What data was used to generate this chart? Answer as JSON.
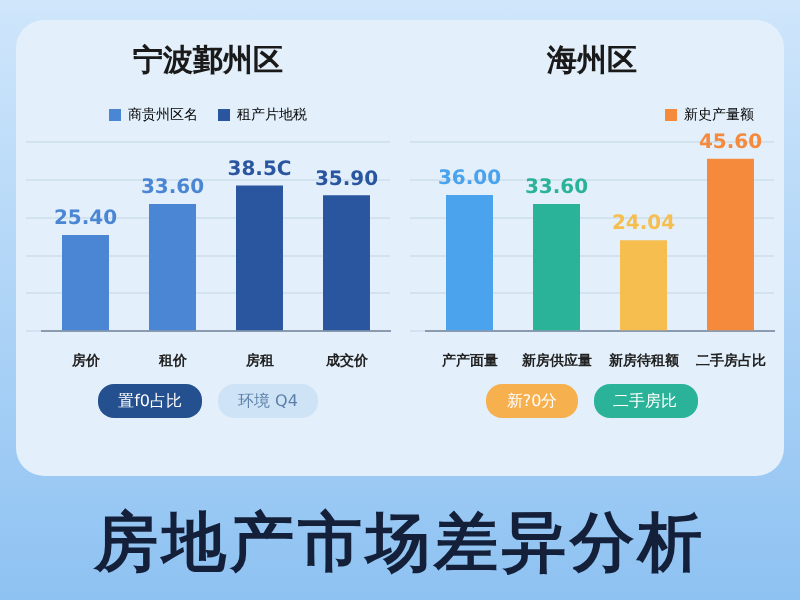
{
  "chart_data": [
    {
      "type": "bar",
      "title": "宁波鄞州区",
      "categories": [
        "房价",
        "租价",
        "房租",
        "成交价"
      ],
      "legend": "top",
      "grid": "y",
      "ylim": [
        0,
        50
      ],
      "tick_labels": "x",
      "yticks": [
        {
          "value": 0,
          "label": null
        },
        {
          "value": 10,
          "label": null
        },
        {
          "value": 20,
          "label": null
        },
        {
          "value": 30,
          "label": null
        },
        {
          "value": 40,
          "label": null
        },
        {
          "value": 50,
          "label": null
        }
      ],
      "data_labels": true,
      "series": [
        {
          "name": "商贵州区名",
          "color": "#4a86d4",
          "values": [
            25.4,
            33.6,
            null,
            null
          ],
          "value_labels": [
            "25.40",
            "33.60",
            null,
            null
          ]
        },
        {
          "name": "租产片地税",
          "color": "#2a56a0",
          "values": [
            null,
            null,
            38.5,
            35.9
          ],
          "value_labels": [
            null,
            null,
            "38.5C",
            "35.90"
          ]
        }
      ],
      "annotations": [
        "置f0占比",
        "环境 Q4"
      ]
    },
    {
      "type": "bar",
      "title": "海州区",
      "categories": [
        "产产面量",
        "新房供应量",
        "新房待租额",
        "二手房占比"
      ],
      "legend": "top right",
      "grid": "y",
      "ylim": [
        0,
        50
      ],
      "tick_labels": "x",
      "yticks": [
        {
          "value": 0,
          "label": null
        },
        {
          "value": 10,
          "label": null
        },
        {
          "value": 20,
          "label": null
        },
        {
          "value": 30,
          "label": null
        },
        {
          "value": 40,
          "label": null
        },
        {
          "value": 50,
          "label": null
        }
      ],
      "data_labels": true,
      "series": [
        {
          "name": "新史产量额",
          "color": "#f58a3d",
          "colors": [
            "#4aa3ec",
            "#2bb39a",
            "#f6bd4f",
            "#f58a3d"
          ],
          "values": [
            36.0,
            33.6,
            24.04,
            45.6
          ],
          "value_labels": [
            "36.00",
            "33.60",
            "24.04",
            "45.60"
          ]
        }
      ],
      "annotations": [
        "新?0分",
        "二手房比"
      ]
    },
    {
      "type": "other",
      "title": "房地产市场差异分析"
    }
  ]
}
